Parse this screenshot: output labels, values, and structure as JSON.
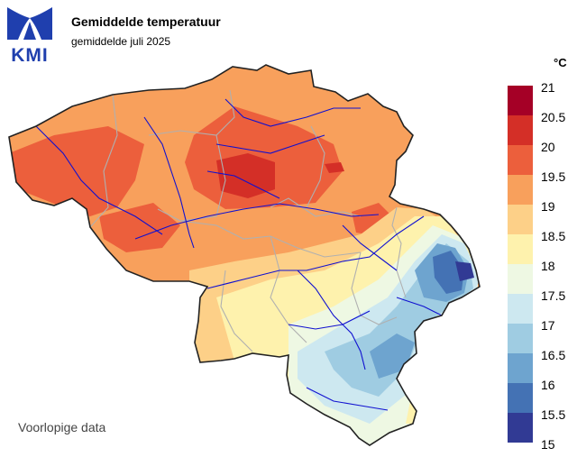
{
  "header": {
    "logo_text": "KMI",
    "title": "Gemiddelde temperatuur",
    "subtitle": "gemiddelde juli 2025"
  },
  "legend": {
    "unit": "°C",
    "ticks": [
      "21",
      "20.5",
      "20",
      "19.5",
      "19",
      "18.5",
      "18",
      "17.5",
      "17",
      "16.5",
      "16",
      "15.5",
      "15"
    ],
    "colors": [
      "#a50026",
      "#d42f27",
      "#ec5f3c",
      "#f8a05c",
      "#fdd088",
      "#fef2ad",
      "#eef8e3",
      "#cde8f0",
      "#9fcce2",
      "#6ea4cf",
      "#4472b4",
      "#313a94"
    ]
  },
  "map": {
    "region": "Belgium",
    "icon": "temperature-map"
  },
  "footer": {
    "note": "Voorlopige data"
  }
}
